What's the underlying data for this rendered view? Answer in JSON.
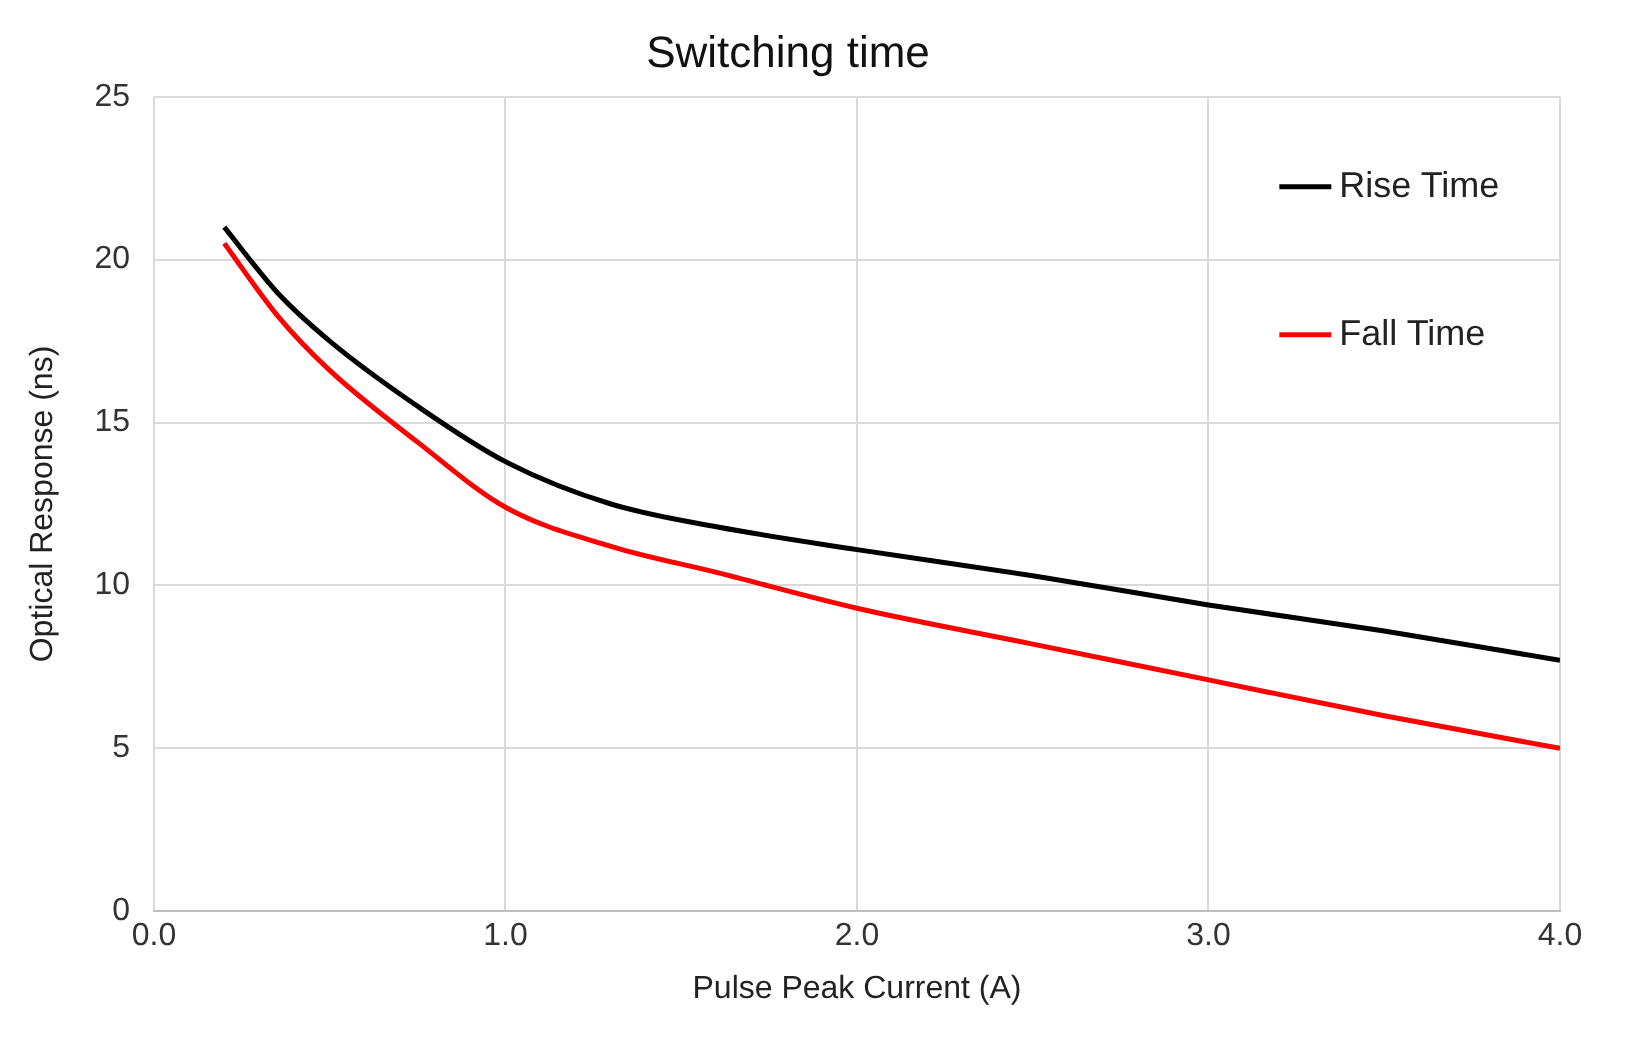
{
  "chart_data": {
    "type": "line",
    "title": "Switching time",
    "xlabel": "Pulse Peak Current (A)",
    "ylabel": "Optical Response (ns)",
    "x": [
      0.2,
      0.35,
      0.5,
      0.75,
      1.0,
      1.3,
      1.6,
      2.0,
      2.5,
      3.0,
      3.5,
      4.0
    ],
    "series": [
      {
        "name": "Rise Time",
        "color": "#000000",
        "values": [
          21.0,
          19.0,
          17.5,
          15.5,
          13.8,
          12.5,
          11.8,
          11.1,
          10.3,
          9.4,
          8.6,
          7.7
        ]
      },
      {
        "name": "Fall Time",
        "color": "#ff0000",
        "values": [
          20.5,
          18.3,
          16.6,
          14.4,
          12.4,
          11.2,
          10.4,
          9.3,
          8.2,
          7.1,
          6.0,
          5.0
        ]
      }
    ],
    "xlim": [
      0,
      4
    ],
    "xticks": [
      {
        "value": 0,
        "label": "0.0"
      },
      {
        "value": 1,
        "label": "1.0"
      },
      {
        "value": 2,
        "label": "2.0"
      },
      {
        "value": 3,
        "label": "3.0"
      },
      {
        "value": 4,
        "label": "4.0"
      }
    ],
    "ylim": [
      0,
      25
    ],
    "yticks": [
      0,
      5,
      10,
      15,
      20,
      25
    ],
    "grid": true,
    "legend": "top right",
    "marker": "none",
    "line_style": "solid"
  }
}
